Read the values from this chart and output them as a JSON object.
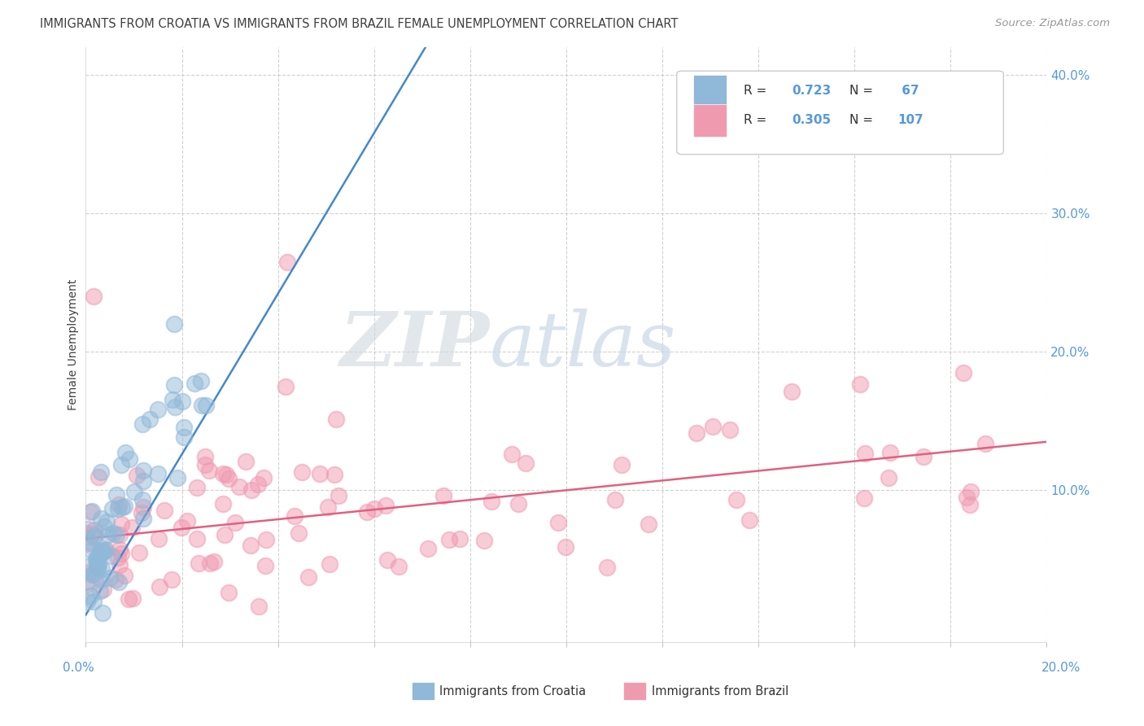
{
  "title": "IMMIGRANTS FROM CROATIA VS IMMIGRANTS FROM BRAZIL FEMALE UNEMPLOYMENT CORRELATION CHART",
  "source": "Source: ZipAtlas.com",
  "ylabel": "Female Unemployment",
  "xlim": [
    0.0,
    0.2
  ],
  "ylim": [
    -0.01,
    0.42
  ],
  "croatia_R": 0.723,
  "croatia_N": 67,
  "brazil_R": 0.305,
  "brazil_N": 107,
  "croatia_color": "#90b8d8",
  "brazil_color": "#f09ab0",
  "croatia_line_color": "#4488cc",
  "brazil_line_color": "#e06080",
  "tick_color": "#5599dd",
  "title_color": "#404040",
  "source_color": "#999999",
  "background_color": "#ffffff",
  "grid_color": "#cccccc",
  "watermark_color": "#c8d8e8",
  "legend_box_color": "#f0f4f8",
  "legend_border_color": "#cccccc"
}
